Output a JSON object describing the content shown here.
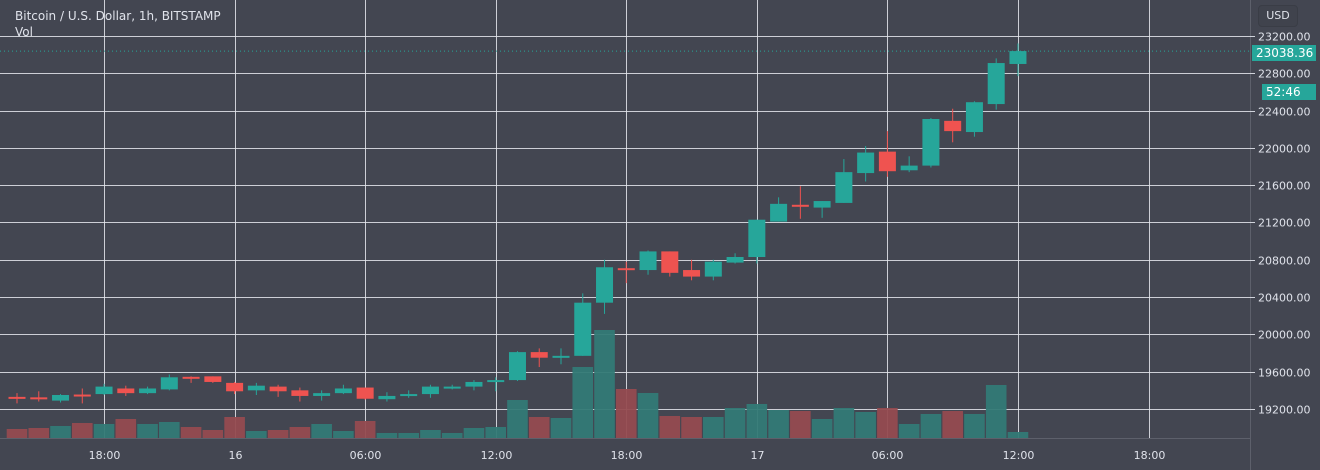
{
  "header": {
    "title": "Bitcoin / U.S. Dollar, 1h, BITSTAMP",
    "volume_label": "Vol"
  },
  "price_axis": {
    "currency": "USD",
    "last_price": "23038.36",
    "countdown": "52:46"
  },
  "colors": {
    "up": "#26a69a",
    "down": "#ef5350",
    "vol_up": "#337a76",
    "vol_down": "#954b50",
    "background": "#434651",
    "grid": "#e6e8ee"
  },
  "chart_data": {
    "type": "candlestick",
    "title": "Bitcoin / U.S. Dollar, 1h, BITSTAMP",
    "ylim": [
      18900,
      23450
    ],
    "y_ticks": [
      "23200.00",
      "22800.00",
      "22400.00",
      "22000.00",
      "21600.00",
      "21200.00",
      "20800.00",
      "20400.00",
      "20000.00",
      "19600.00",
      "19200.00"
    ],
    "x_ticks": [
      {
        "label": "18:00",
        "index": 4
      },
      {
        "label": "16",
        "index": 10
      },
      {
        "label": "06:00",
        "index": 16
      },
      {
        "label": "12:00",
        "index": 22
      },
      {
        "label": "18:00",
        "index": 28
      },
      {
        "label": "17",
        "index": 34
      },
      {
        "label": "06:00",
        "index": 40
      },
      {
        "label": "12:00",
        "index": 46
      },
      {
        "label": "18:00",
        "index": 52
      }
    ],
    "candles": [
      [
        19330,
        19370,
        19260,
        19315,
        9
      ],
      [
        19325,
        19390,
        19280,
        19320,
        10
      ],
      [
        19290,
        19360,
        19270,
        19350,
        12
      ],
      [
        19355,
        19420,
        19260,
        19350,
        15
      ],
      [
        19360,
        19470,
        19350,
        19440,
        14
      ],
      [
        19420,
        19450,
        19340,
        19370,
        19
      ],
      [
        19370,
        19440,
        19360,
        19420,
        14
      ],
      [
        19410,
        19570,
        19400,
        19540,
        16
      ],
      [
        19545,
        19550,
        19480,
        19540,
        11
      ],
      [
        19550,
        19550,
        19480,
        19490,
        8
      ],
      [
        19480,
        19490,
        19360,
        19390,
        21
      ],
      [
        19400,
        19480,
        19350,
        19450,
        7
      ],
      [
        19440,
        19460,
        19330,
        19390,
        8
      ],
      [
        19400,
        19430,
        19280,
        19340,
        11
      ],
      [
        19340,
        19400,
        19290,
        19370,
        14
      ],
      [
        19370,
        19460,
        19360,
        19420,
        7
      ],
      [
        19430,
        19430,
        19300,
        19310,
        17
      ],
      [
        19305,
        19380,
        19280,
        19340,
        5
      ],
      [
        19340,
        19400,
        19320,
        19360,
        5
      ],
      [
        19360,
        19460,
        19320,
        19440,
        8
      ],
      [
        19420,
        19460,
        19410,
        19440,
        5
      ],
      [
        19440,
        19510,
        19400,
        19490,
        10
      ],
      [
        19490,
        19540,
        19390,
        19510,
        11
      ],
      [
        19510,
        19820,
        19500,
        19810,
        38
      ],
      [
        19810,
        19850,
        19650,
        19750,
        21
      ],
      [
        19750,
        19850,
        19680,
        19770,
        20
      ],
      [
        19770,
        20440,
        19770,
        20340,
        71
      ],
      [
        20340,
        20800,
        20220,
        20720,
        108
      ],
      [
        20710,
        20780,
        20550,
        20690,
        49
      ],
      [
        20690,
        20900,
        20640,
        20890,
        45
      ],
      [
        20890,
        20890,
        20620,
        20660,
        22
      ],
      [
        20690,
        20800,
        20580,
        20620,
        21
      ],
      [
        20620,
        20800,
        20580,
        20780,
        21
      ],
      [
        20770,
        20870,
        20760,
        20830,
        30
      ],
      [
        20830,
        21230,
        20760,
        21230,
        34
      ],
      [
        21210,
        21470,
        21210,
        21400,
        28
      ],
      [
        21390,
        21590,
        21240,
        21380,
        27
      ],
      [
        21360,
        21430,
        21250,
        21430,
        19
      ],
      [
        21410,
        21880,
        21410,
        21740,
        30
      ],
      [
        21730,
        22020,
        21640,
        21950,
        26
      ],
      [
        21960,
        22180,
        21690,
        21750,
        30
      ],
      [
        21760,
        21910,
        21740,
        21810,
        14
      ],
      [
        21810,
        22320,
        21790,
        22310,
        24
      ],
      [
        22290,
        22420,
        22060,
        22180,
        27
      ],
      [
        22170,
        22500,
        22120,
        22490,
        24
      ],
      [
        22470,
        22960,
        22410,
        22910,
        53
      ],
      [
        22900,
        23120,
        22770,
        23038.36,
        6
      ]
    ]
  }
}
